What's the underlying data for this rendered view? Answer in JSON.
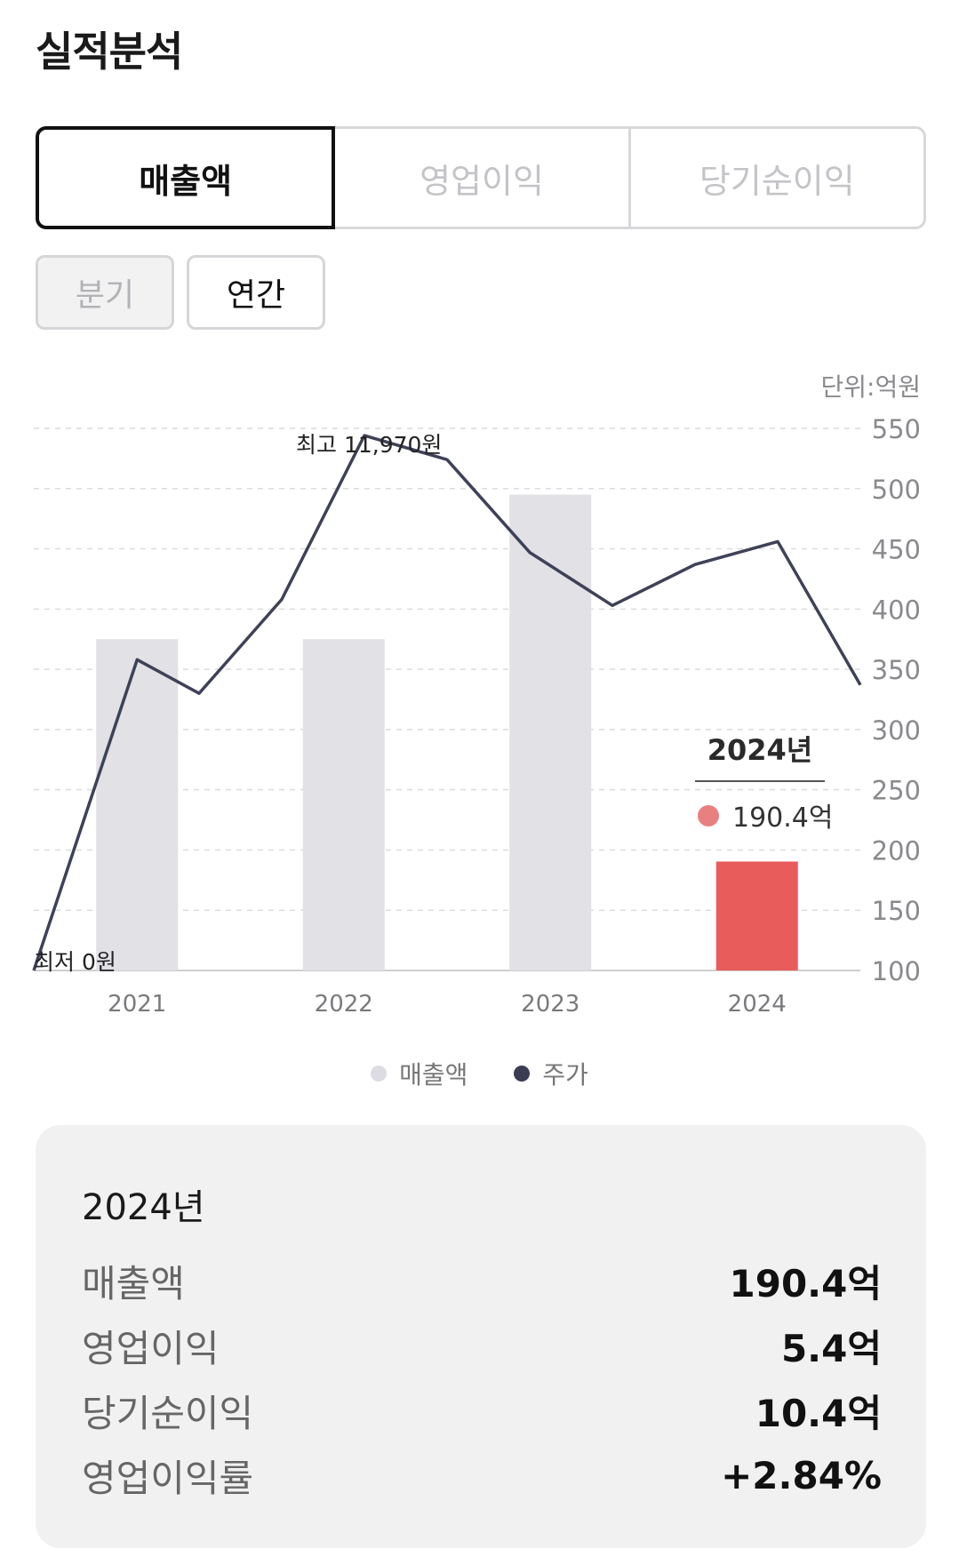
{
  "title": "실적분석",
  "main_tabs": [
    {
      "label": "매출액"
    },
    {
      "label": "영업이익"
    },
    {
      "label": "당기순이익"
    }
  ],
  "sub_tabs": [
    {
      "label": "분기"
    },
    {
      "label": "연간"
    }
  ],
  "chart_data": {
    "type": "bar",
    "unit_label": "단위:억원",
    "categories": [
      "2021",
      "2022",
      "2023",
      "2024"
    ],
    "series": [
      {
        "name": "매출액",
        "values": [
          375,
          375,
          495,
          190.4
        ],
        "colors": [
          "#e1e1e6",
          "#e1e1e6",
          "#e1e1e6",
          "#e85c5c"
        ]
      }
    ],
    "line_series": {
      "name": "주가",
      "color": "#3f4257",
      "values": [
        100,
        358,
        330,
        408,
        544,
        524,
        447,
        403,
        437,
        456,
        337
      ],
      "x_positions": [
        0,
        0.5,
        0.8,
        1.2,
        1.6,
        2.0,
        2.4,
        2.8,
        3.2,
        3.6,
        4.0
      ]
    },
    "annotations": {
      "high": "최고 11,970원",
      "low": "최저 0원"
    },
    "ylim": [
      100,
      550
    ],
    "yticks": [
      100,
      150,
      200,
      250,
      300,
      350,
      400,
      450,
      500,
      550
    ],
    "grid": true,
    "tooltip": {
      "title": "2024년",
      "value": "190.4억",
      "dot_color": "#e88080"
    },
    "legend": [
      {
        "label": "매출액",
        "color": "#dcdce2"
      },
      {
        "label": "주가",
        "color": "#3a3d52"
      }
    ]
  },
  "summary": {
    "year": "2024년",
    "rows": [
      {
        "label": "매출액",
        "value": "190.4억"
      },
      {
        "label": "영업이익",
        "value": "5.4억"
      },
      {
        "label": "당기순이익",
        "value": "10.4억"
      },
      {
        "label": "영업이익률",
        "value": "+2.84%"
      }
    ]
  }
}
